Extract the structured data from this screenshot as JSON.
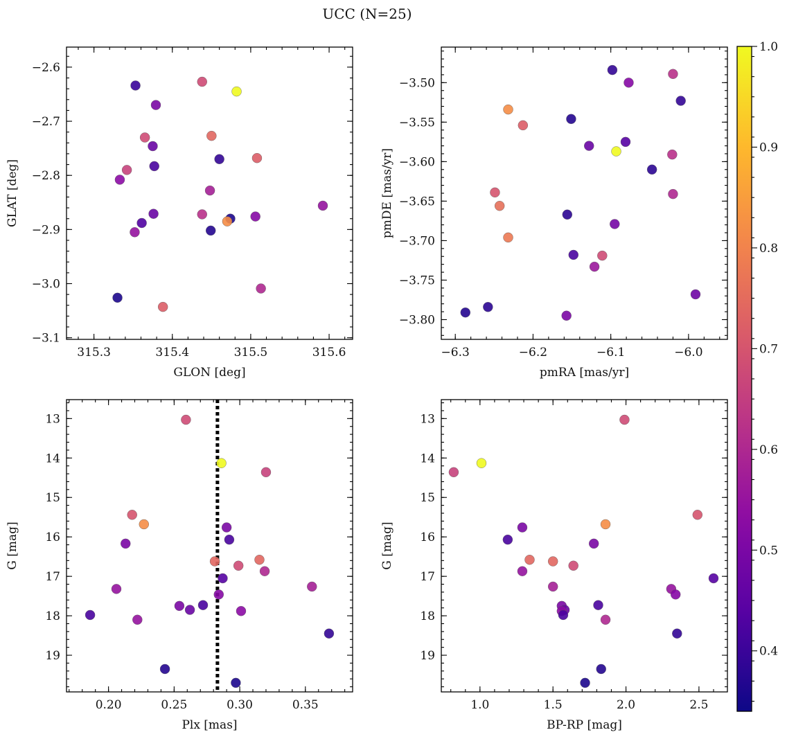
{
  "figure_title": "UCC (N=25)",
  "colorbar": {
    "ticks": [
      "0.4",
      "0.5",
      "0.6",
      "0.7",
      "0.8",
      "0.9",
      "1.0"
    ],
    "tick_values": [
      0.4,
      0.5,
      0.6,
      0.7,
      0.8,
      0.9,
      1.0
    ],
    "min": 0.34,
    "max": 1.0,
    "colormap": "plasma"
  },
  "chart_data": [
    {
      "type": "scatter",
      "xlabel": "GLON [deg]",
      "ylabel": "GLAT [deg]",
      "xlim": [
        315.265,
        315.63
      ],
      "ylim": [
        -3.103,
        -2.563
      ],
      "xticks": [
        315.3,
        315.4,
        315.5,
        315.6
      ],
      "xtick_labels": [
        "315.3",
        "315.4",
        "315.5",
        "315.6"
      ],
      "yticks": [
        -3.1,
        -3.0,
        -2.9,
        -2.8,
        -2.7,
        -2.6
      ],
      "ytick_labels": [
        "−3.1",
        "−3.0",
        "−2.9",
        "−2.8",
        "−2.7",
        "−2.6"
      ],
      "y_inverted": false,
      "x": [
        315.353,
        315.438,
        315.482,
        315.379,
        315.365,
        315.45,
        315.375,
        315.377,
        315.46,
        315.508,
        315.342,
        315.333,
        315.448,
        315.376,
        315.438,
        315.474,
        315.506,
        315.47,
        315.361,
        315.592,
        315.449,
        315.352,
        315.513,
        315.33,
        315.388
      ],
      "y": [
        -2.634,
        -2.627,
        -2.645,
        -2.67,
        -2.73,
        -2.727,
        -2.746,
        -2.783,
        -2.77,
        -2.768,
        -2.79,
        -2.808,
        -2.828,
        -2.871,
        -2.872,
        -2.88,
        -2.876,
        -2.885,
        -2.888,
        -2.856,
        -2.902,
        -2.905,
        -3.009,
        -3.026,
        -3.043
      ],
      "c": [
        0.4,
        0.68,
        1.0,
        0.5,
        0.68,
        0.74,
        0.47,
        0.42,
        0.39,
        0.72,
        0.66,
        0.53,
        0.58,
        0.47,
        0.62,
        0.36,
        0.52,
        0.82,
        0.43,
        0.55,
        0.37,
        0.55,
        0.6,
        0.36,
        0.72
      ]
    },
    {
      "type": "scatter",
      "xlabel": "pmRA [mas/yr]",
      "ylabel": "pmDE [mas/yr]",
      "xlim": [
        -6.318,
        -5.95
      ],
      "ylim": [
        -3.825,
        -3.455
      ],
      "xticks": [
        -6.3,
        -6.2,
        -6.1,
        -6.0
      ],
      "xtick_labels": [
        "−6.3",
        "−6.2",
        "−6.1",
        "−6.0"
      ],
      "yticks": [
        -3.8,
        -3.75,
        -3.7,
        -3.65,
        -3.6,
        -3.55,
        -3.5
      ],
      "ytick_labels": [
        "−3.80",
        "−3.75",
        "−3.70",
        "−3.65",
        "−3.60",
        "−3.55",
        "−3.50"
      ],
      "y_inverted": false,
      "x": [
        -6.098,
        -6.02,
        -6.077,
        -6.01,
        -6.232,
        -6.213,
        -6.151,
        -6.128,
        -6.081,
        -6.093,
        -6.021,
        -6.047,
        -6.249,
        -6.243,
        -6.02,
        -6.156,
        -6.095,
        -6.232,
        -6.148,
        -6.111,
        -6.121,
        -5.991,
        -6.287,
        -6.258,
        -6.157
      ],
      "y": [
        -3.484,
        -3.489,
        -3.5,
        -3.523,
        -3.534,
        -3.554,
        -3.546,
        -3.58,
        -3.575,
        -3.587,
        -3.591,
        -3.61,
        -3.639,
        -3.656,
        -3.641,
        -3.667,
        -3.679,
        -3.696,
        -3.718,
        -3.719,
        -3.733,
        -3.768,
        -3.791,
        -3.784,
        -3.795
      ],
      "c": [
        0.39,
        0.62,
        0.52,
        0.39,
        0.82,
        0.72,
        0.37,
        0.47,
        0.44,
        1.0,
        0.62,
        0.38,
        0.7,
        0.76,
        0.6,
        0.38,
        0.49,
        0.78,
        0.42,
        0.68,
        0.56,
        0.48,
        0.37,
        0.38,
        0.5
      ]
    },
    {
      "type": "scatter",
      "xlabel": "Plx [mas]",
      "ylabel": "G [mag]",
      "xlim": [
        0.168,
        0.386
      ],
      "ylim": [
        19.93,
        12.52
      ],
      "xticks": [
        0.2,
        0.25,
        0.3,
        0.35
      ],
      "xtick_labels": [
        "0.20",
        "0.25",
        "0.30",
        "0.35"
      ],
      "yticks": [
        13,
        14,
        15,
        16,
        17,
        18,
        19
      ],
      "ytick_labels": [
        "13",
        "14",
        "15",
        "16",
        "17",
        "18",
        "19"
      ],
      "y_inverted": true,
      "vline": 0.283,
      "x": [
        0.259,
        0.286,
        0.32,
        0.218,
        0.227,
        0.29,
        0.213,
        0.292,
        0.281,
        0.315,
        0.299,
        0.319,
        0.287,
        0.206,
        0.355,
        0.284,
        0.254,
        0.272,
        0.262,
        0.301,
        0.186,
        0.222,
        0.368,
        0.243,
        0.297
      ],
      "y": [
        13.03,
        14.13,
        14.36,
        15.44,
        15.68,
        15.76,
        16.17,
        16.07,
        16.62,
        16.58,
        16.73,
        16.87,
        17.05,
        17.32,
        17.26,
        17.46,
        17.75,
        17.73,
        17.85,
        17.88,
        17.98,
        18.1,
        18.45,
        19.35,
        19.7
      ],
      "c": [
        0.68,
        1.0,
        0.66,
        0.7,
        0.82,
        0.5,
        0.5,
        0.42,
        0.74,
        0.74,
        0.68,
        0.6,
        0.44,
        0.55,
        0.58,
        0.52,
        0.5,
        0.42,
        0.47,
        0.53,
        0.42,
        0.55,
        0.39,
        0.37,
        0.36
      ]
    },
    {
      "type": "scatter",
      "xlabel": "BP-RP [mag]",
      "ylabel": "G [mag]",
      "xlim": [
        0.735,
        2.695
      ],
      "ylim": [
        19.93,
        12.52
      ],
      "xticks": [
        1.0,
        1.5,
        2.0,
        2.5
      ],
      "xtick_labels": [
        "1.0",
        "1.5",
        "2.0",
        "2.5"
      ],
      "yticks": [
        13,
        14,
        15,
        16,
        17,
        18,
        19
      ],
      "ytick_labels": [
        "13",
        "14",
        "15",
        "16",
        "17",
        "18",
        "19"
      ],
      "y_inverted": true,
      "x": [
        1.99,
        1.01,
        0.82,
        2.49,
        1.86,
        1.29,
        1.19,
        1.78,
        1.34,
        1.5,
        1.64,
        1.29,
        2.6,
        2.31,
        1.5,
        2.34,
        1.56,
        1.81,
        1.58,
        1.56,
        1.57,
        1.86,
        2.35,
        1.83,
        1.72
      ],
      "y": [
        13.03,
        14.13,
        14.36,
        15.44,
        15.68,
        15.76,
        16.07,
        16.17,
        16.58,
        16.62,
        16.73,
        16.87,
        17.05,
        17.32,
        17.26,
        17.46,
        17.75,
        17.73,
        17.85,
        17.88,
        17.98,
        18.1,
        18.45,
        19.35,
        19.7
      ],
      "c": [
        0.68,
        1.0,
        0.66,
        0.7,
        0.82,
        0.5,
        0.42,
        0.5,
        0.74,
        0.74,
        0.68,
        0.55,
        0.44,
        0.55,
        0.58,
        0.52,
        0.5,
        0.42,
        0.47,
        0.53,
        0.42,
        0.6,
        0.39,
        0.37,
        0.36
      ]
    }
  ]
}
